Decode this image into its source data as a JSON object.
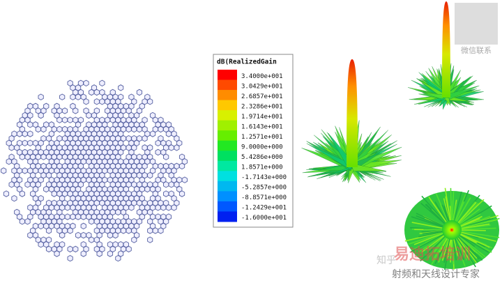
{
  "legend": {
    "title": "dB(RealizedGain",
    "labels": [
      "3.4000e+001",
      "3.0429e+001",
      "2.6857e+001",
      "2.3286e+001",
      "1.9714e+001",
      "1.6143e+001",
      "1.2571e+001",
      "9.0000e+000",
      "5.4286e+000",
      "1.8571e+000",
      "-1.7143e+000",
      "-5.2857e+000",
      "-8.8571e+000",
      "-1.2429e+001",
      "-1.6000e+001"
    ],
    "colors": [
      "#ff0000",
      "#ff4a00",
      "#ff8c00",
      "#ffc800",
      "#d8f000",
      "#a0f000",
      "#66ee00",
      "#22e822",
      "#00e060",
      "#00e8a0",
      "#00e0e0",
      "#00b8f0",
      "#0090ff",
      "#0058ff",
      "#0020f0"
    ]
  },
  "watermark": {
    "qr_caption": "微信联系",
    "site": "知乎",
    "brand": "易迪拓培训",
    "tagline": "射频和天线设计专家"
  }
}
